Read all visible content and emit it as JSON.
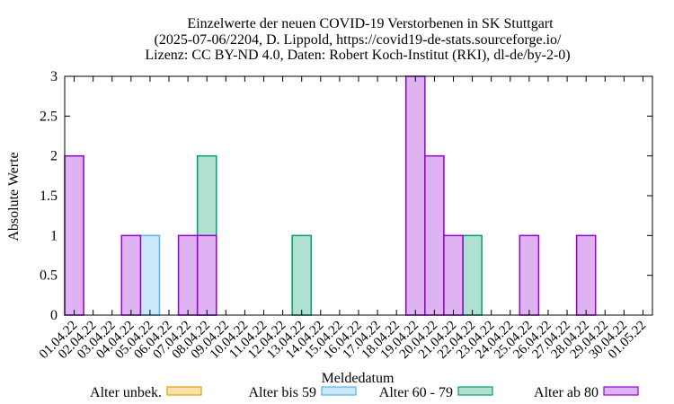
{
  "chart_data": {
    "type": "bar",
    "title": [
      "Einzelwerte der neuen COVID-19 Verstorbenen in SK Stuttgart",
      "(2025-07-06/2204, D. Lippold, https://covid19-de-stats.sourceforge.io/",
      "Lizenz: CC BY-ND 4.0, Daten: Robert Koch-Institut (RKI), dl-de/by-2-0)"
    ],
    "xlabel": "Meldedatum",
    "ylabel": "Absolute Werte",
    "ylim": [
      0,
      3
    ],
    "yticks": [
      "0",
      "0.5",
      "1",
      "1.5",
      "2",
      "2.5",
      "3"
    ],
    "categories": [
      "01.04.22",
      "02.04.22",
      "03.04.22",
      "04.04.22",
      "05.04.22",
      "06.04.22",
      "07.04.22",
      "08.04.22",
      "09.04.22",
      "10.04.22",
      "11.04.22",
      "12.04.22",
      "13.04.22",
      "14.04.22",
      "15.04.22",
      "16.04.22",
      "17.04.22",
      "18.04.22",
      "19.04.22",
      "20.04.22",
      "21.04.22",
      "22.04.22",
      "23.04.22",
      "24.04.22",
      "25.04.22",
      "26.04.22",
      "27.04.22",
      "28.04.22",
      "29.04.22",
      "30.04.22",
      "01.05.22"
    ],
    "legend_position": "bottom",
    "series": [
      {
        "name": "Alter unbek.",
        "color": "#e69f00",
        "fill": "#f9e1b0",
        "values": [
          0,
          0,
          0,
          0,
          0,
          0,
          0,
          0,
          0,
          0,
          0,
          0,
          0,
          0,
          0,
          0,
          0,
          0,
          0,
          0,
          0,
          0,
          0,
          0,
          0,
          0,
          0,
          0,
          0,
          0,
          0
        ]
      },
      {
        "name": "Alter bis 59",
        "color": "#56b4e9",
        "fill": "#cbe8f8",
        "values": [
          0,
          0,
          0,
          0,
          1,
          0,
          0,
          0,
          0,
          0,
          0,
          0,
          0,
          0,
          0,
          0,
          0,
          0,
          0,
          0,
          0,
          0,
          0,
          0,
          0,
          0,
          0,
          0,
          0,
          0,
          0
        ]
      },
      {
        "name": "Alter 60 - 79",
        "color": "#009e73",
        "fill": "#b0e0d0",
        "values": [
          0,
          0,
          0,
          0,
          0,
          0,
          0,
          2,
          0,
          0,
          0,
          0,
          1,
          0,
          0,
          0,
          0,
          0,
          0,
          0,
          0,
          1,
          0,
          0,
          0,
          0,
          0,
          0,
          0,
          0,
          0
        ]
      },
      {
        "name": "Alter ab 80",
        "color": "#9400d3",
        "fill": "#dfb3f2",
        "values": [
          2,
          0,
          0,
          1,
          0,
          0,
          1,
          1,
          0,
          0,
          0,
          0,
          0,
          0,
          0,
          0,
          0,
          0,
          3,
          2,
          1,
          0,
          0,
          0,
          1,
          0,
          0,
          1,
          0,
          0,
          0
        ]
      }
    ]
  }
}
